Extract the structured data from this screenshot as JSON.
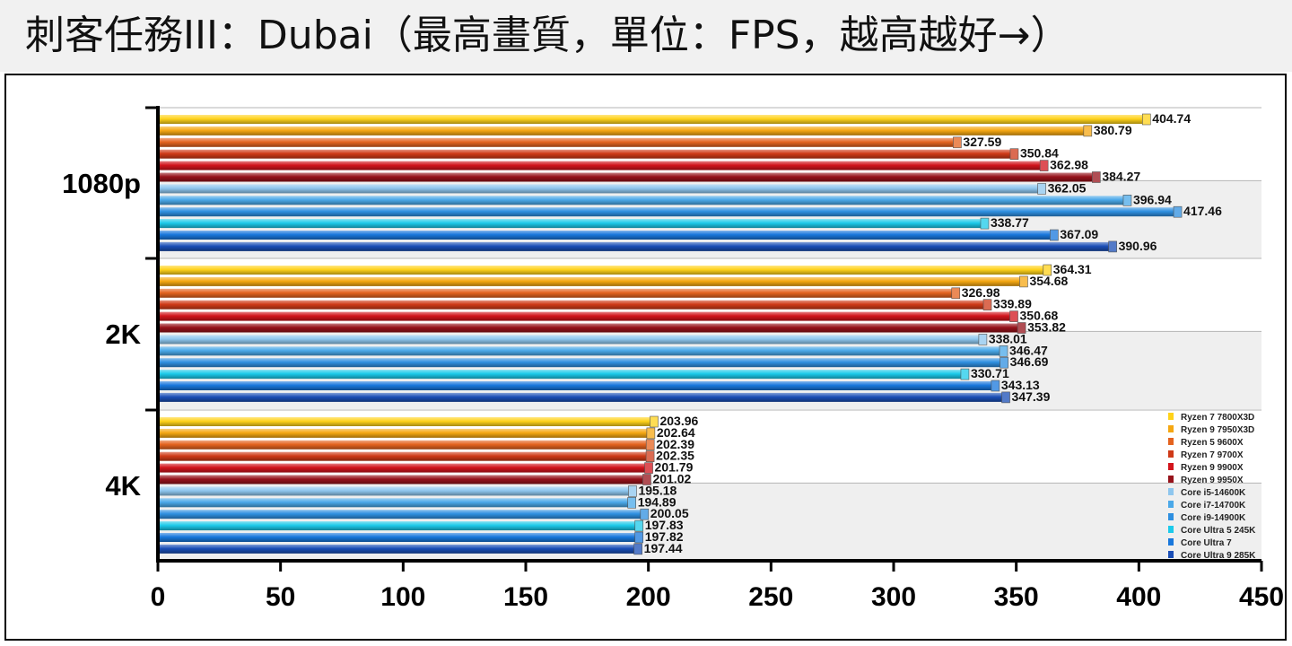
{
  "chart_data": {
    "type": "bar",
    "orientation": "horizontal",
    "title": "刺客任務III：Dubai（最高畫質，單位：FPS，越高越好→）",
    "xlabel": "",
    "ylabel": "",
    "xlim": [
      0,
      450
    ],
    "x_ticks": [
      "0",
      "50",
      "100",
      "150",
      "200",
      "250",
      "300",
      "350",
      "400",
      "450"
    ],
    "categories": [
      "1080p",
      "2K",
      "4K"
    ],
    "legend_position": "bottom-right",
    "series": [
      {
        "name": "Ryzen 7 7800X3D",
        "color": "#ffd21a",
        "values": [
          404.74,
          364.31,
          203.96
        ],
        "labels": [
          "404.74",
          "364.31",
          "203.96"
        ]
      },
      {
        "name": "Ryzen 9 7950X3D",
        "color": "#f5a712",
        "values": [
          380.79,
          354.68,
          202.64
        ],
        "labels": [
          "380.79",
          "354.68",
          "202.64"
        ]
      },
      {
        "name": "Ryzen 5 9600X",
        "color": "#e4631f",
        "values": [
          327.59,
          326.98,
          202.39
        ],
        "labels": [
          "327.59",
          "326.98",
          "202.39"
        ]
      },
      {
        "name": "Ryzen 7 9700X",
        "color": "#cf3a18",
        "values": [
          350.84,
          339.89,
          202.35
        ],
        "labels": [
          "350.84",
          "339.89",
          "202.35"
        ]
      },
      {
        "name": "Ryzen 9 9900X",
        "color": "#d2141c",
        "values": [
          362.98,
          350.68,
          201.79
        ],
        "labels": [
          "362.98",
          "350.68",
          "201.79"
        ]
      },
      {
        "name": "Ryzen 9 9950X",
        "color": "#96121a",
        "values": [
          384.27,
          353.82,
          201.02
        ],
        "labels": [
          "384.27",
          "353.82",
          "201.02"
        ]
      },
      {
        "name": "Core i5-14600K",
        "color": "#8ec6ee",
        "values": [
          362.05,
          338.01,
          195.18
        ],
        "labels": [
          "362.05",
          "338.01",
          "195.18"
        ]
      },
      {
        "name": "Core i7-14700K",
        "color": "#4aa8e8",
        "values": [
          396.94,
          346.47,
          194.89
        ],
        "labels": [
          "396.94",
          "346.47",
          "194.89"
        ]
      },
      {
        "name": "Core i9-14900K",
        "color": "#2e8fe0",
        "values": [
          417.46,
          346.69,
          200.05
        ],
        "labels": [
          "417.46",
          "346.69",
          "200.05"
        ]
      },
      {
        "name": "Core Ultra 5 245K",
        "color": "#1ccaea",
        "values": [
          338.77,
          330.71,
          197.83
        ],
        "labels": [
          "338.77",
          "330.71",
          "197.83"
        ]
      },
      {
        "name": "Core Ultra 7",
        "color": "#1877dc",
        "values": [
          367.09,
          343.13,
          197.82
        ],
        "labels": [
          "367.09",
          "343.13",
          "197.82"
        ]
      },
      {
        "name": "Core Ultra 9 285K",
        "color": "#1a4eb6",
        "values": [
          390.96,
          347.39,
          197.44
        ],
        "labels": [
          "390.96",
          "347.39",
          "197.44"
        ]
      }
    ]
  }
}
